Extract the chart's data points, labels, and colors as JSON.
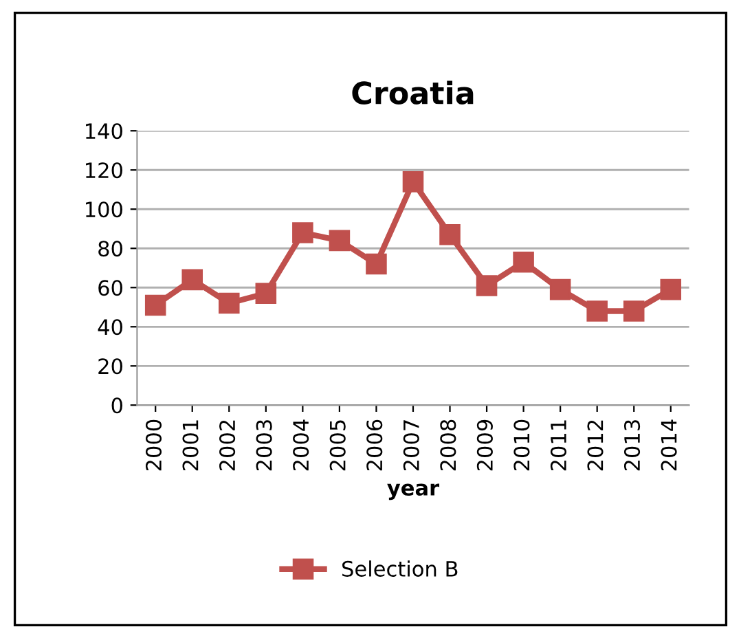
{
  "chart_data": {
    "type": "line",
    "title": "Croatia",
    "xlabel": "year",
    "categories": [
      "2000",
      "2001",
      "2002",
      "2003",
      "2004",
      "2005",
      "2006",
      "2007",
      "2008",
      "2009",
      "2010",
      "2011",
      "2012",
      "2013",
      "2014"
    ],
    "series": [
      {
        "name": "Selection B",
        "color": "#c0504d",
        "values": [
          51,
          64,
          52,
          57,
          88,
          84,
          72,
          114,
          87,
          61,
          73,
          59,
          48,
          48,
          59
        ]
      }
    ],
    "ylim": [
      0,
      140
    ],
    "yticks": [
      0,
      20,
      40,
      60,
      80,
      100,
      120,
      140
    ],
    "grid": "y",
    "legend": "bottom",
    "marker": "square",
    "line_style": "solid"
  }
}
